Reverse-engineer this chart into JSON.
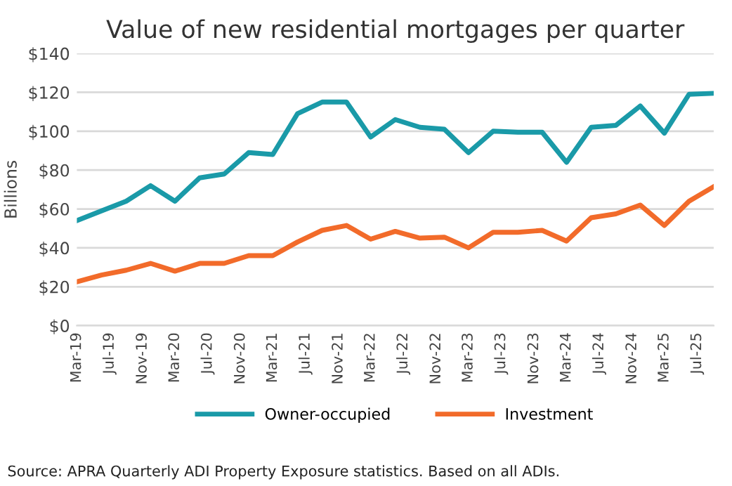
{
  "chart_data": {
    "type": "line",
    "title": "Value of new residential mortgages per quarter",
    "ylabel": "Billions",
    "x": [
      "2019-03",
      "2019-06",
      "2019-09",
      "2019-12",
      "2020-03",
      "2020-06",
      "2020-09",
      "2020-12",
      "2021-03",
      "2021-06",
      "2021-09",
      "2021-12",
      "2022-03",
      "2022-06",
      "2022-09",
      "2022-12",
      "2023-03",
      "2023-06",
      "2023-09",
      "2023-12",
      "2024-03",
      "2024-06",
      "2024-09",
      "2024-12",
      "2025-03",
      "2025-06",
      "2025-09"
    ],
    "series": [
      {
        "name": "Owner-occupied",
        "color": "#1a9aa8",
        "values": [
          54,
          59,
          64,
          72,
          64,
          76,
          78,
          89,
          88,
          109,
          115,
          115,
          97,
          106,
          102,
          101,
          89,
          100,
          99.5,
          99.5,
          84,
          102,
          103,
          113,
          99,
          119,
          119.5
        ]
      },
      {
        "name": "Investment",
        "color": "#f26b2a",
        "values": [
          22.5,
          26,
          28.5,
          32,
          28,
          32,
          32,
          36,
          36,
          43,
          49,
          51.5,
          44.5,
          48.5,
          45,
          45.5,
          40,
          48,
          48,
          49,
          43.5,
          55.5,
          57.5,
          62,
          51.5,
          64,
          71.5
        ]
      }
    ],
    "xlim": [
      "2019-03",
      "2025-09"
    ],
    "xticks": [
      {
        "value": "2019-03",
        "label": "Mar-19"
      },
      {
        "value": "2019-07",
        "label": "Jul-19"
      },
      {
        "value": "2019-11",
        "label": "Nov-19"
      },
      {
        "value": "2020-03",
        "label": "Mar-20"
      },
      {
        "value": "2020-07",
        "label": "Jul-20"
      },
      {
        "value": "2020-11",
        "label": "Nov-20"
      },
      {
        "value": "2021-03",
        "label": "Mar-21"
      },
      {
        "value": "2021-07",
        "label": "Jul-21"
      },
      {
        "value": "2021-11",
        "label": "Nov-21"
      },
      {
        "value": "2022-03",
        "label": "Mar-22"
      },
      {
        "value": "2022-07",
        "label": "Jul-22"
      },
      {
        "value": "2022-11",
        "label": "Nov-22"
      },
      {
        "value": "2023-03",
        "label": "Mar-23"
      },
      {
        "value": "2023-07",
        "label": "Jul-23"
      },
      {
        "value": "2023-11",
        "label": "Nov-23"
      },
      {
        "value": "2024-03",
        "label": "Mar-24"
      },
      {
        "value": "2024-07",
        "label": "Jul-24"
      },
      {
        "value": "2024-11",
        "label": "Nov-24"
      },
      {
        "value": "2025-03",
        "label": "Mar-25"
      },
      {
        "value": "2025-07",
        "label": "Jul-25"
      }
    ],
    "ylim": [
      0,
      140
    ],
    "yticks": [
      {
        "value": 0,
        "label": "$0"
      },
      {
        "value": 20,
        "label": "$20"
      },
      {
        "value": 40,
        "label": "$40"
      },
      {
        "value": 60,
        "label": "$60"
      },
      {
        "value": 80,
        "label": "$80"
      },
      {
        "value": 100,
        "label": "$100"
      },
      {
        "value": 120,
        "label": "$120"
      },
      {
        "value": 140,
        "label": "$140"
      }
    ],
    "grid": "y",
    "legend": "bottom",
    "marker": "none",
    "line_style": "solid",
    "annotations": [
      "Source: APRA Quarterly ADI Property Exposure statistics. Based on all ADIs."
    ]
  }
}
